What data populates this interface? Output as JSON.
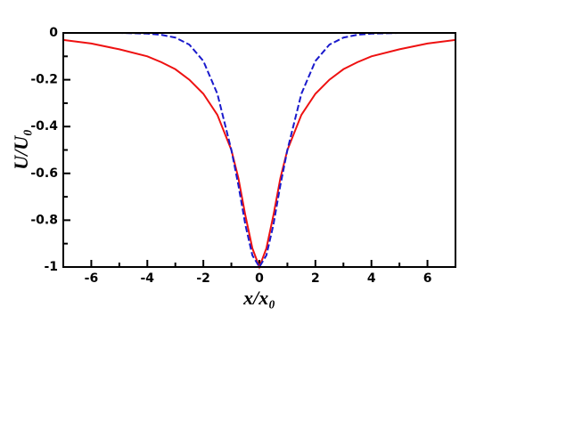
{
  "chart_data": {
    "type": "line",
    "x_label": "x/x₀",
    "y_label": "U/U₀",
    "x": [
      -7,
      -6,
      -5,
      -4,
      -3.5,
      -3,
      -2.5,
      -2,
      -1.5,
      -1,
      -0.75,
      -0.5,
      -0.25,
      0,
      0.25,
      0.5,
      0.75,
      1,
      1.5,
      2,
      2.5,
      3,
      3.5,
      4,
      5,
      6,
      7
    ],
    "series": [
      {
        "color": "#ee1111",
        "dash": false,
        "values": [
          -0.03,
          -0.045,
          -0.07,
          -0.1,
          -0.125,
          -0.155,
          -0.2,
          -0.26,
          -0.35,
          -0.5,
          -0.62,
          -0.78,
          -0.92,
          -1,
          -0.92,
          -0.78,
          -0.62,
          -0.5,
          -0.35,
          -0.26,
          -0.2,
          -0.155,
          -0.125,
          -0.1,
          -0.07,
          -0.045,
          -0.03
        ]
      },
      {
        "color": "#1a1acc",
        "dash": true,
        "values": [
          0,
          0,
          0,
          -0.003,
          -0.008,
          -0.02,
          -0.05,
          -0.12,
          -0.26,
          -0.5,
          -0.65,
          -0.82,
          -0.95,
          -1,
          -0.95,
          -0.82,
          -0.65,
          -0.5,
          -0.26,
          -0.12,
          -0.05,
          -0.02,
          -0.008,
          -0.003,
          0,
          0,
          0
        ]
      }
    ],
    "xlim": [
      -7,
      7
    ],
    "xticks": [
      -6,
      -4,
      -2,
      0,
      2,
      4,
      6
    ],
    "ylim": [
      -1,
      0
    ],
    "yticks": [
      0,
      -0.2,
      -0.4,
      -0.6,
      -0.8,
      -1
    ]
  }
}
